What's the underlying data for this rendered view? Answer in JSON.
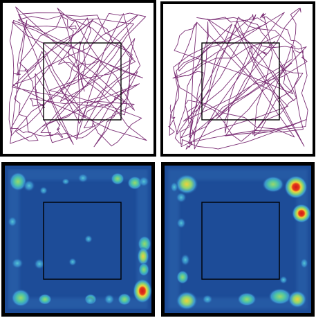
{
  "figure": {
    "panels": [
      {
        "kind": "trajectory",
        "position": "top-left",
        "path_color": "#7a2d74"
      },
      {
        "kind": "trajectory",
        "position": "top-right",
        "path_color": "#7a2d74"
      },
      {
        "kind": "heatmap",
        "position": "bottom-left"
      },
      {
        "kind": "heatmap",
        "position": "bottom-right"
      }
    ],
    "colors": {
      "frame": "#000000",
      "inner_square": "#000000",
      "heatmap_background": "#1d4c98",
      "heatmap_low": "#3fa3d8",
      "heatmap_mid": "#7fd37a",
      "heatmap_high": "#f0d23a",
      "heatmap_peak": "#d41a1a"
    }
  }
}
